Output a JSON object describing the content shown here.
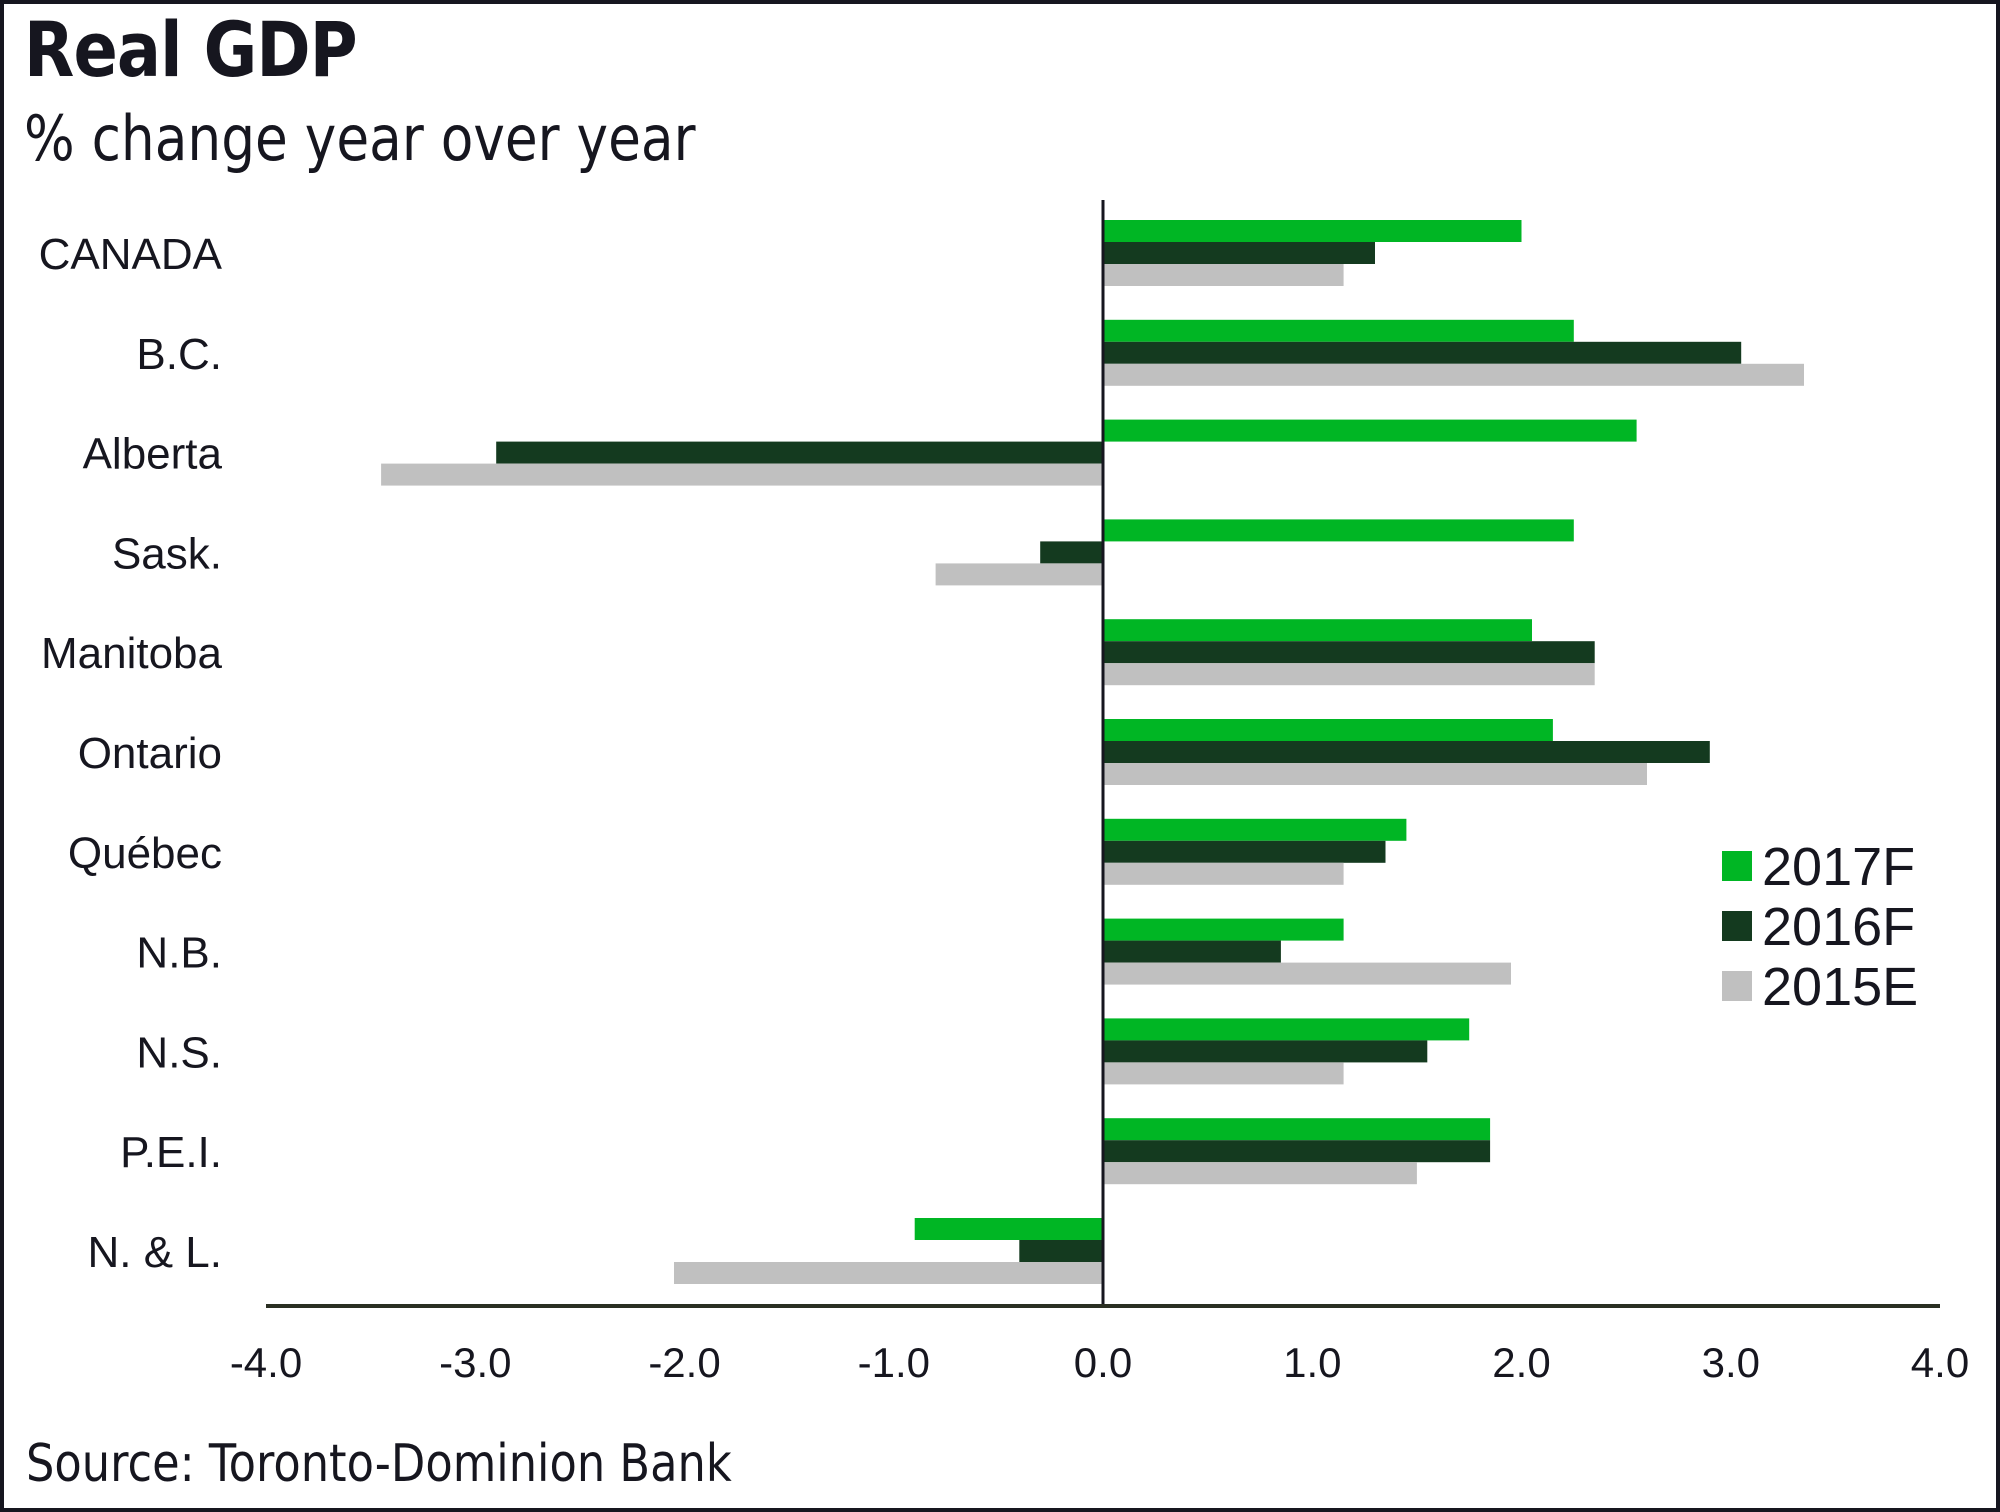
{
  "header": {
    "title": "Real GDP",
    "subtitle": "% change year over year"
  },
  "footer": {
    "source": "Source: Toronto-Dominion Bank"
  },
  "chart_data": {
    "type": "bar",
    "orientation": "horizontal",
    "title": "Real GDP",
    "subtitle": "% change year over year",
    "xlabel": "",
    "ylabel": "",
    "xlim": [
      -4.0,
      4.0
    ],
    "x_ticks": [
      -4.0,
      -3.0,
      -2.0,
      -1.0,
      0.0,
      1.0,
      2.0,
      3.0,
      4.0
    ],
    "x_tick_labels": [
      "-4.0",
      "-3.0",
      "-2.0",
      "-1.0",
      "0.0",
      "1.0",
      "2.0",
      "3.0",
      "4.0"
    ],
    "grid": false,
    "legend_position": "right",
    "categories": [
      "CANADA",
      "B.C.",
      "Alberta",
      "Sask.",
      "Manitoba",
      "Ontario",
      "Québec",
      "N.B.",
      "N.S.",
      "P.E.I.",
      "N. & L."
    ],
    "series": [
      {
        "name": "2017F",
        "color": "#00b624",
        "values": [
          2.0,
          2.25,
          2.55,
          2.25,
          2.05,
          2.15,
          1.45,
          1.15,
          1.75,
          1.85,
          -0.9
        ]
      },
      {
        "name": "2016F",
        "color": "#143a1f",
        "values": [
          1.3,
          3.05,
          -2.9,
          -0.3,
          2.35,
          2.9,
          1.35,
          0.85,
          1.55,
          1.85,
          -0.4
        ]
      },
      {
        "name": "2015E",
        "color": "#c0c0c0",
        "values": [
          1.15,
          3.35,
          -3.45,
          -0.8,
          2.35,
          2.6,
          1.15,
          1.95,
          1.15,
          1.5,
          -2.05
        ]
      }
    ],
    "axis_color": "#16161f",
    "source": "Source: Toronto-Dominion Bank"
  }
}
